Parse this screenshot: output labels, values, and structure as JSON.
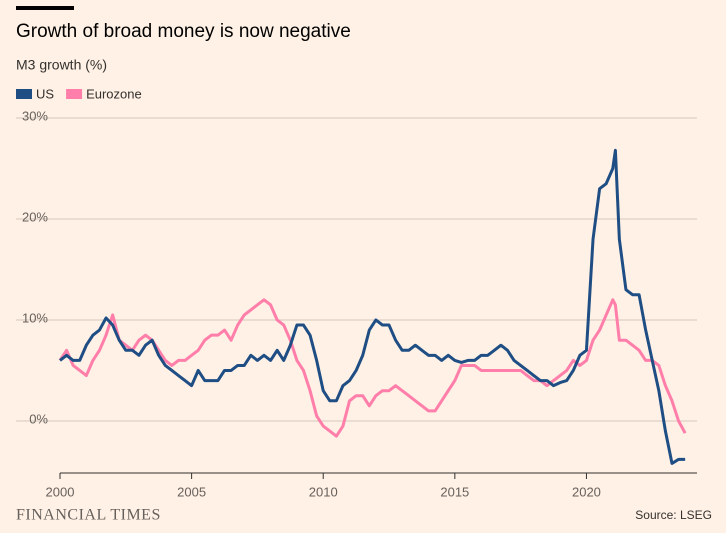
{
  "chart_data": {
    "type": "line",
    "title": "Growth of broad money is now negative",
    "subtitle": "M3 growth (%)",
    "source": "Source: LSEG",
    "logo": "FINANCIAL TIMES",
    "x": [
      2000,
      2000.25,
      2000.5,
      2000.75,
      2001,
      2001.25,
      2001.5,
      2001.75,
      2002,
      2002.25,
      2002.5,
      2002.75,
      2003,
      2003.25,
      2003.5,
      2003.75,
      2004,
      2004.25,
      2004.5,
      2004.75,
      2005,
      2005.25,
      2005.5,
      2005.75,
      2006,
      2006.25,
      2006.5,
      2006.75,
      2007,
      2007.25,
      2007.5,
      2007.75,
      2008,
      2008.25,
      2008.5,
      2008.75,
      2009,
      2009.25,
      2009.5,
      2009.75,
      2010,
      2010.25,
      2010.5,
      2010.75,
      2011,
      2011.25,
      2011.5,
      2011.75,
      2012,
      2012.25,
      2012.5,
      2012.75,
      2013,
      2013.25,
      2013.5,
      2013.75,
      2014,
      2014.25,
      2014.5,
      2014.75,
      2015,
      2015.25,
      2015.5,
      2015.75,
      2016,
      2016.25,
      2016.5,
      2016.75,
      2017,
      2017.25,
      2017.5,
      2017.75,
      2018,
      2018.25,
      2018.5,
      2018.75,
      2019,
      2019.25,
      2019.5,
      2019.75,
      2020,
      2020.25,
      2020.5,
      2020.75,
      2021,
      2021.1,
      2021.25,
      2021.5,
      2021.75,
      2022,
      2022.25,
      2022.5,
      2022.75,
      2023,
      2023.25,
      2023.5,
      2023.75
    ],
    "series": [
      {
        "name": "US",
        "color": "#1f4e85",
        "values": [
          6,
          6.5,
          6,
          6,
          7.5,
          8.5,
          9,
          10.2,
          9.5,
          8,
          7,
          7,
          6.5,
          7.5,
          8,
          6.5,
          5.5,
          5,
          4.5,
          4,
          3.5,
          5,
          4,
          4,
          4,
          5,
          5,
          5.5,
          5.5,
          6.5,
          6,
          6.5,
          6,
          7,
          6,
          7.5,
          9.5,
          9.5,
          8.5,
          6,
          3,
          2,
          2,
          3.5,
          4,
          5,
          6.5,
          9,
          10,
          9.5,
          9.5,
          8,
          7,
          7,
          7.5,
          7,
          6.5,
          6.5,
          6,
          6.5,
          6,
          5.8,
          6,
          6,
          6.5,
          6.5,
          7,
          7.5,
          7,
          6,
          5.5,
          5,
          4.5,
          4,
          4,
          3.5,
          3.8,
          4,
          5,
          6.5,
          7,
          18,
          23,
          23.5,
          25,
          26.8,
          18,
          13,
          12.5,
          12.5,
          9,
          6,
          3,
          -1,
          -4.2,
          -3.8,
          -3.8
        ]
      },
      {
        "name": "Eurozone",
        "color": "#ff7faa",
        "values": [
          6,
          7,
          5.5,
          5,
          4.5,
          6,
          7,
          8.5,
          10.5,
          8,
          7.5,
          7,
          8,
          8.5,
          8,
          7,
          6,
          5.5,
          6,
          6,
          6.5,
          7,
          8,
          8.5,
          8.5,
          9,
          8,
          9.5,
          10.5,
          11,
          11.5,
          12,
          11.5,
          10,
          9.5,
          8,
          6,
          5,
          3,
          0.5,
          -0.5,
          -1,
          -1.5,
          -0.5,
          2,
          2.5,
          2.5,
          1.5,
          2.5,
          3,
          3,
          3.5,
          3,
          2.5,
          2,
          1.5,
          1,
          1,
          2,
          3,
          4,
          5.5,
          5.5,
          5.5,
          5,
          5,
          5,
          5,
          5,
          5,
          5,
          4.5,
          4,
          4,
          3.5,
          4,
          4.5,
          5,
          6,
          5.5,
          6,
          8,
          9,
          10.5,
          12,
          11.5,
          8,
          8,
          7.5,
          7,
          6,
          6,
          5.5,
          3.5,
          2,
          0,
          -1.2
        ]
      }
    ],
    "xlim": [
      2000,
      2024.2
    ],
    "xticks": [
      2000,
      2005,
      2010,
      2015,
      2020
    ],
    "ylim": [
      -5.15,
      30
    ],
    "yticks": [
      {
        "value": 0,
        "label": "0%"
      },
      {
        "value": 10,
        "label": "10%"
      },
      {
        "value": 20,
        "label": "20%"
      },
      {
        "value": 30,
        "label": "30%"
      }
    ],
    "grid": true
  }
}
